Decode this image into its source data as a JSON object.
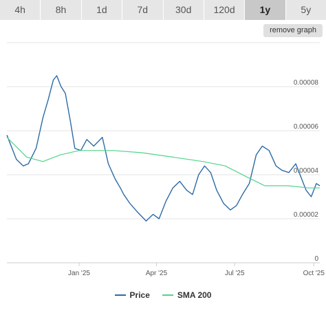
{
  "tabs": [
    {
      "label": "4h",
      "active": false
    },
    {
      "label": "8h",
      "active": false
    },
    {
      "label": "1d",
      "active": false
    },
    {
      "label": "7d",
      "active": false
    },
    {
      "label": "30d",
      "active": false
    },
    {
      "label": "120d",
      "active": false
    },
    {
      "label": "1y",
      "active": true
    },
    {
      "label": "5y",
      "active": false
    }
  ],
  "remove_graph_label": "remove graph",
  "colors": {
    "price": "#2b6aa6",
    "sma": "#4fd48a",
    "grid": "#e3e3e3",
    "axis_text": "#555555"
  },
  "chart_data": {
    "type": "line",
    "x_tick_labels": [
      "Jan '25",
      "Apr '25",
      "Jul '25",
      "Oct '25"
    ],
    "y_tick_labels": [
      "0",
      "0.00002",
      "0.00004",
      "0.00006",
      "0.00008"
    ],
    "ylim": [
      0,
      0.0001
    ],
    "grid": true,
    "legend_position": "bottom",
    "series": [
      {
        "name": "Price",
        "color": "#2b6aa6",
        "x": [
          "2024-10-09",
          "2024-10-20",
          "2024-10-28",
          "2024-11-03",
          "2024-11-12",
          "2024-11-20",
          "2024-11-26",
          "2024-12-02",
          "2024-12-06",
          "2024-12-11",
          "2024-12-16",
          "2024-12-22",
          "2024-12-27",
          "2025-01-03",
          "2025-01-10",
          "2025-01-18",
          "2025-01-28",
          "2025-02-04",
          "2025-02-12",
          "2025-02-18",
          "2025-02-22",
          "2025-03-01",
          "2025-03-10",
          "2025-03-20",
          "2025-03-28",
          "2025-04-04",
          "2025-04-12",
          "2025-04-20",
          "2025-04-28",
          "2025-05-06",
          "2025-05-13",
          "2025-05-20",
          "2025-05-27",
          "2025-06-03",
          "2025-06-10",
          "2025-06-18",
          "2025-06-26",
          "2025-07-03",
          "2025-07-10",
          "2025-07-18",
          "2025-07-26",
          "2025-08-02",
          "2025-08-10",
          "2025-08-18",
          "2025-08-25",
          "2025-09-02",
          "2025-09-10",
          "2025-09-16",
          "2025-09-22",
          "2025-09-28",
          "2025-10-04",
          "2025-10-08"
        ],
        "values": [
          5.8e-05,
          4.7e-05,
          4.4e-05,
          4.5e-05,
          5.2e-05,
          6.6e-05,
          7.4e-05,
          8.3e-05,
          8.5e-05,
          8e-05,
          7.7e-05,
          6.4e-05,
          5.2e-05,
          5.1e-05,
          5.6e-05,
          5.3e-05,
          5.7e-05,
          4.5e-05,
          3.8e-05,
          3.4e-05,
          3.1e-05,
          2.7e-05,
          2.3e-05,
          1.9e-05,
          2.2e-05,
          2e-05,
          2.8e-05,
          3.4e-05,
          3.7e-05,
          3.3e-05,
          3.1e-05,
          4e-05,
          4.4e-05,
          4.1e-05,
          3.3e-05,
          2.7e-05,
          2.4e-05,
          2.6e-05,
          3.1e-05,
          3.6e-05,
          4.9e-05,
          5.3e-05,
          5.1e-05,
          4.4e-05,
          4.2e-05,
          4.1e-05,
          4.5e-05,
          3.9e-05,
          3.3e-05,
          3e-05,
          3.6e-05,
          3.5e-05
        ]
      },
      {
        "name": "SMA 200",
        "color": "#4fd48a",
        "x": [
          "2024-10-09",
          "2024-11-01",
          "2024-11-20",
          "2024-12-10",
          "2025-01-01",
          "2025-02-10",
          "2025-03-15",
          "2025-04-20",
          "2025-05-25",
          "2025-06-20",
          "2025-07-15",
          "2025-08-05",
          "2025-09-01",
          "2025-09-25",
          "2025-10-08"
        ],
        "values": [
          5.7e-05,
          4.8e-05,
          4.6e-05,
          4.9e-05,
          5.1e-05,
          5.1e-05,
          5e-05,
          4.8e-05,
          4.6e-05,
          4.4e-05,
          3.9e-05,
          3.5e-05,
          3.5e-05,
          3.4e-05,
          3.4e-05
        ]
      }
    ]
  }
}
